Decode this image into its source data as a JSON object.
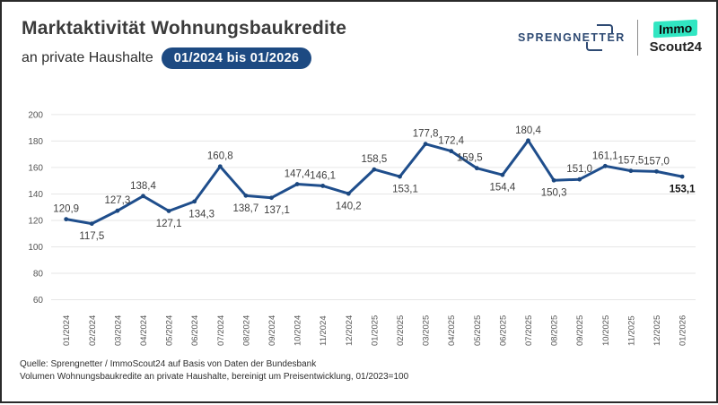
{
  "header": {
    "title": "Marktaktivität Wohnungsbaukredite",
    "subtitle": "an private Haushalte",
    "period_badge": "01/2024 bis 01/2026",
    "logos": {
      "sprengnetter": "SPRENGNETTER",
      "immoscout_top": "Immo",
      "immoscout_bottom": "Scout24"
    }
  },
  "footer": {
    "line1": "Quelle: Sprengnetter / ImmoScout24 auf Basis von Daten der Bundesbank",
    "line2": "Volumen Wohnungsbaukredite an private Haushalte, bereinigt um Preisentwicklung, 01/2023=100"
  },
  "colors": {
    "line": "#1f4e8c",
    "marker": "#1b477f",
    "badge": "#1d4a82",
    "grid": "#e6e6e6",
    "tick_text": "#555555",
    "label_text": "#3f3f3f",
    "last_label_text": "#111111"
  },
  "chart_data": {
    "type": "line",
    "x": [
      "01/2024",
      "02/2024",
      "03/2024",
      "04/2024",
      "05/2024",
      "06/2024",
      "07/2024",
      "08/2024",
      "09/2024",
      "10/2024",
      "11/2024",
      "12/2024",
      "01/2025",
      "02/2025",
      "03/2025",
      "04/2025",
      "05/2025",
      "06/2025",
      "07/2025",
      "08/2025",
      "09/2025",
      "10/2025",
      "11/2025",
      "12/2025",
      "01/2026"
    ],
    "values": [
      120.9,
      117.5,
      127.3,
      138.4,
      127.1,
      134.3,
      160.8,
      138.7,
      137.1,
      147.4,
      146.1,
      140.2,
      158.5,
      153.1,
      177.8,
      172.4,
      159.5,
      154.4,
      180.4,
      150.3,
      151.0,
      161.1,
      157.5,
      157.0,
      153.1
    ],
    "labels": [
      "120,9",
      "117,5",
      "127,3",
      "138,4",
      "127,1",
      "134,3",
      "160,8",
      "138,7",
      "137,1",
      "147,4",
      "146,1",
      "140,2",
      "158,5",
      "153,1",
      "177,8",
      "172,4",
      "159,5",
      "154,4",
      "180,4",
      "150,3",
      "151,0",
      "161,1",
      "157,5",
      "157,0",
      "153,1"
    ],
    "label_pos": [
      "above",
      "below",
      "above",
      "above",
      "below",
      "below",
      "above",
      "below",
      "below",
      "above",
      "above",
      "below",
      "above",
      "below",
      "above",
      "above",
      "above",
      "below",
      "above",
      "below",
      "above",
      "above",
      "above",
      "above",
      "below"
    ],
    "label_dx": [
      0,
      0,
      0,
      0,
      0,
      8,
      0,
      0,
      6,
      0,
      0,
      0,
      0,
      6,
      0,
      0,
      -8,
      0,
      0,
      0,
      0,
      0,
      0,
      0,
      0
    ],
    "ylim": [
      60,
      200
    ],
    "yticks": [
      60,
      80,
      100,
      120,
      140,
      160,
      180,
      200
    ],
    "grid": true,
    "legend": "none",
    "last_label_bold": true
  }
}
